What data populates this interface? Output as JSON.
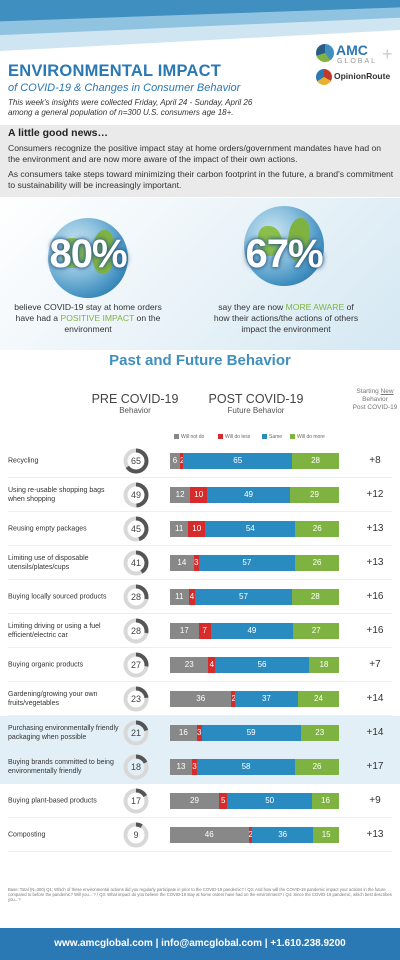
{
  "header": {
    "title": "ENVIRONMENTAL IMPACT",
    "subtitle": "of COVID-19 & Changes in Consumer Behavior",
    "intro_line1": "This week's insights were collected Friday, April 24 - Sunday, April 26",
    "intro_line2": "among a general population of n=300 U.S. consumers age 18+."
  },
  "logos": {
    "amc_name": "AMC",
    "amc_sub": "GLOBAL",
    "opinion_route": "OpinionRoute"
  },
  "good_news": {
    "heading": "A little good news…",
    "p1": "Consumers recognize the positive impact stay at home orders/government mandates have had on the environment and are now more aware of the impact of their own actions.",
    "p2": "As consumers take steps toward minimizing their carbon footprint in the future, a brand's commitment to sustainability will be increasingly important."
  },
  "stats": [
    {
      "value": "80%",
      "pre": "believe COVID-19 stay at home orders have had a ",
      "highlight": "POSITIVE IMPACT",
      "post": " on the environment"
    },
    {
      "value": "67%",
      "pre": "say they are now ",
      "highlight": "MORE AWARE",
      "post": " of how their actions/the actions of others impact the environment"
    }
  ],
  "section_title": "Past and Future Behavior",
  "columns": {
    "pre_title": "PRE COVID-19",
    "pre_sub": "Behavior",
    "post_title": "POST COVID-19",
    "post_sub": "Future Behavior",
    "start_1": "Starting ",
    "start_new": "New",
    "start_2": "Behavior",
    "start_3": "Post COVID-19"
  },
  "legend": {
    "will_not_do": "Will not do",
    "will_do_less": "Will do less",
    "same": "Same",
    "will_do_more": "Will do more"
  },
  "colors": {
    "will_not_do": "#888888",
    "will_do_less": "#d72b2b",
    "same": "#2a8bc0",
    "will_do_more": "#7fb341",
    "accent": "#2a78b4"
  },
  "chart_data": {
    "type": "bar",
    "stacked": true,
    "orientation": "horizontal",
    "categories": [
      "Recycling",
      "Using re-usable shopping bags when shopping",
      "Reusing empty packages",
      "Limiting use of disposable utensils/plates/cups",
      "Buying locally sourced products",
      "Limiting driving or using a fuel efficient/electric car",
      "Buying organic products",
      "Gardening/growing your own fruits/vegetables",
      "Purchasing environmentally friendly packaging when possible",
      "Buying brands committed to being environmentally friendly",
      "Buying plant-based products",
      "Composting"
    ],
    "pre_covid": [
      65,
      49,
      45,
      41,
      28,
      28,
      27,
      23,
      21,
      18,
      17,
      9
    ],
    "series": [
      {
        "name": "Will not do",
        "values": [
          6,
          12,
          11,
          14,
          11,
          17,
          23,
          36,
          16,
          13,
          29,
          46
        ]
      },
      {
        "name": "Will do less",
        "values": [
          2,
          10,
          10,
          3,
          4,
          7,
          4,
          2,
          3,
          3,
          5,
          2
        ]
      },
      {
        "name": "Same",
        "values": [
          65,
          49,
          54,
          57,
          57,
          49,
          56,
          37,
          59,
          58,
          50,
          36
        ]
      },
      {
        "name": "Will do more",
        "values": [
          28,
          29,
          26,
          26,
          28,
          27,
          18,
          24,
          23,
          26,
          16,
          15
        ]
      }
    ],
    "new_behavior": [
      "+8",
      "+12",
      "+13",
      "+13",
      "+16",
      "+16",
      "+7",
      "+14",
      "+14",
      "+17",
      "+9",
      "+13"
    ],
    "highlighted_rows": [
      8,
      9
    ]
  },
  "base_note": "Base: Total (N=300) Q1: Which of these environmental actions did you regularly participate in prior to the COVID-19 pandemic? / Q2: And how will the COVID-19 pandemic impact your actions in the future compared to before the pandemic? Will you... ? / Q3: What impact do you believe the COVID-19 stay at home orders have had on the environment? / Q4: Since the COVID-19 pandemic, which best describes you...?",
  "footer": "www.amcglobal.com | info@amcglobal.com | +1.610.238.9200"
}
